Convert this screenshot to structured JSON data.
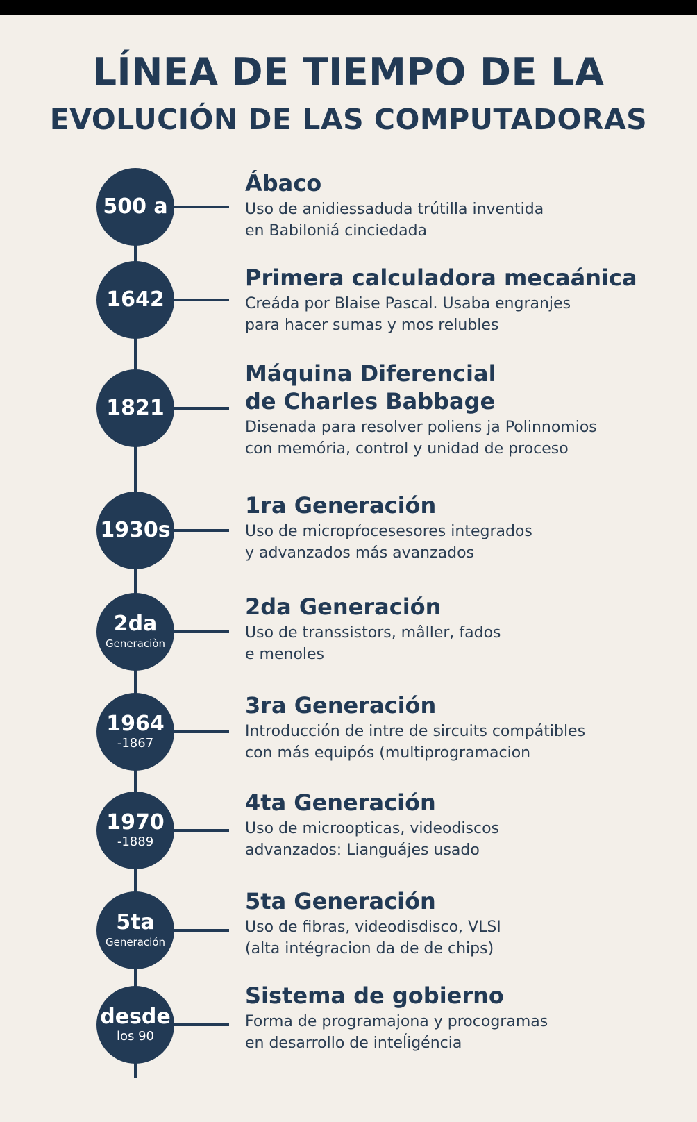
{
  "title": {
    "line1": "LÍNEA DE TIEMPO DE LA",
    "line2": "EVOLUCIÓN DE LAS COMPUTADORAS"
  },
  "colors": {
    "accent": "#223a55",
    "background": "#f3efe9"
  },
  "events": [
    {
      "date": "500 a",
      "date_sub": "",
      "heading": "Ábaco",
      "desc_line1": "Uso de anidiessaduda trútilla inventida",
      "desc_line2": "en Babiloniá cinciedada"
    },
    {
      "date": "1642",
      "date_sub": "",
      "heading": "Primera calculadora mecaánica",
      "desc_line1": "Creáda por Blaise Pascal. Usaba engranjes",
      "desc_line2": "para hacer sumas y mos relubles"
    },
    {
      "date": "1821",
      "date_sub": "",
      "heading": "Máquina Diferencial",
      "heading_line2": "de Charles Babbage",
      "desc_line1": "Disenada para resolver poliens ja Polinnomios",
      "desc_line2": "con memória, control y unidad de proceso"
    },
    {
      "date": "1930s",
      "date_sub": "",
      "heading": "1ra Generación",
      "desc_line1": "Uso de micropŕocesesores integrados",
      "desc_line2": "y advanzados más avanzados"
    },
    {
      "date": "2da",
      "date_sub": "Generaciòn",
      "heading": "2da Generación",
      "desc_line1": "Uso de transsistors, mâller, fados",
      "desc_line2": "e menoles"
    },
    {
      "date": "1964",
      "date_sub": "-1867",
      "heading": "3ra Generación",
      "desc_line1": "Introducción de intre de sircuits compátibles",
      "desc_line2": "con más equipós (multiprogramacion"
    },
    {
      "date": "1970",
      "date_sub": "-1889",
      "heading": "4ta Generación",
      "desc_line1": "Uso de microopticas, videodiscos",
      "desc_line2": "advanzados: Lianguájes usado"
    },
    {
      "date": "5ta",
      "date_sub": "Generación",
      "heading": "5ta Generación",
      "desc_line1": "Uso de fibras, videodisdisco, VLSI",
      "desc_line2": "(alta intégracion da de de chips)"
    },
    {
      "date": "desde",
      "date_sub": "los 90",
      "heading": "Sistema de gobierno",
      "desc_line1": "Forma de programajona y procogramas",
      "desc_line2": "en desarrollo de inteĺigéncia"
    }
  ]
}
